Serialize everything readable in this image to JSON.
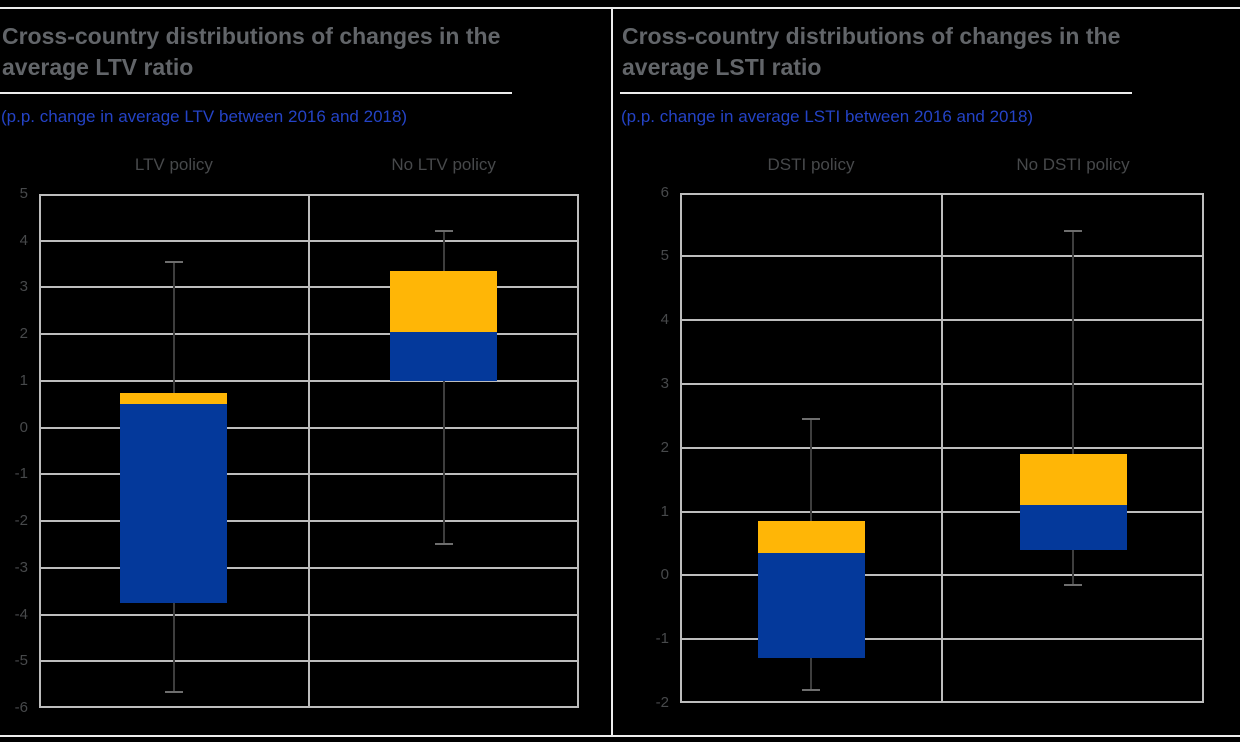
{
  "chart_data": [
    {
      "type": "boxplot",
      "title": "Cross-country distributions of changes in the\naverage LTV ratio",
      "subtitle": "(p.p. change in average LTV between 2016 and 2018)",
      "categories": [
        "LTV policy",
        "No LTV policy"
      ],
      "axis": {
        "min": -6,
        "max": 5,
        "ticks": [
          5,
          4,
          3,
          2,
          1,
          0,
          -1,
          -2,
          -3,
          -4,
          -5,
          -6
        ],
        "grid": true
      },
      "boxes": [
        {
          "category": "LTV policy",
          "min": -5.65,
          "q1": -3.75,
          "median": 0.5,
          "q3": 0.75,
          "max": 3.55
        },
        {
          "category": "No LTV policy",
          "min": -2.5,
          "q1": 1.0,
          "median": 2.05,
          "q3": 3.35,
          "max": 4.2
        }
      ]
    },
    {
      "type": "boxplot",
      "title": "Cross-country distributions of changes in the\naverage LSTI ratio",
      "subtitle": "(p.p. change in average LSTI between 2016 and 2018)",
      "categories": [
        "DSTI policy",
        "No DSTI policy"
      ],
      "axis": {
        "min": -2,
        "max": 6,
        "ticks": [
          6,
          5,
          4,
          3,
          2,
          1,
          0,
          -1,
          -2
        ],
        "grid": true
      },
      "boxes": [
        {
          "category": "DSTI policy",
          "min": -1.8,
          "q1": -1.3,
          "median": 0.35,
          "q3": 0.85,
          "max": 2.45
        },
        {
          "category": "No DSTI policy",
          "min": -0.15,
          "q1": 0.4,
          "median": 1.1,
          "q3": 1.9,
          "max": 5.4
        }
      ]
    }
  ],
  "colors": {
    "background": "#000000",
    "title": "#626569",
    "subtitle": "#2443C6",
    "faded_label": "#47494B",
    "gridline": "#BDBDBD",
    "upper_box": "#FFB606",
    "lower_box": "#04399B",
    "whisker": "#3E3E3E",
    "whisker_cap": "#6E6E6E",
    "separator": "#ECECEC"
  }
}
